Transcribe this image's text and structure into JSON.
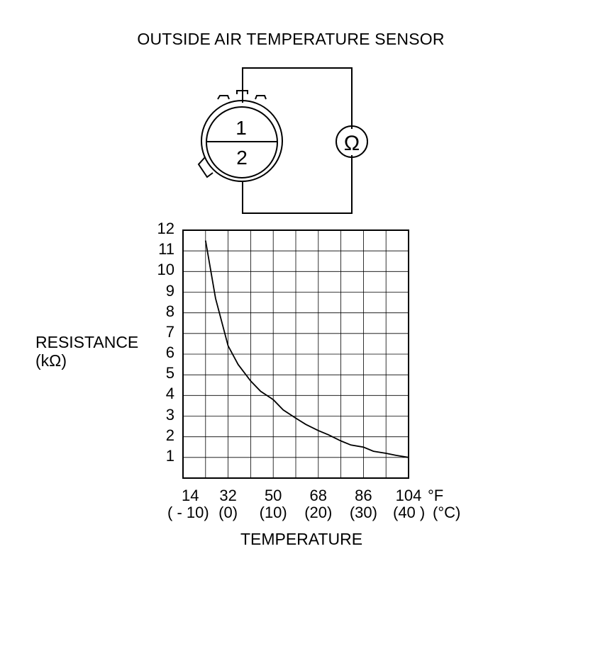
{
  "title": "OUTSIDE AIR TEMPERATURE SENSOR",
  "connector": {
    "pin_top": "1",
    "pin_bottom": "2",
    "meter_symbol": "Ω"
  },
  "chart_data": {
    "type": "line",
    "ylabel_line1": "RESISTANCE",
    "ylabel_line2": "(kΩ)",
    "xlabel": "TEMPERATURE",
    "x_unit_f": "°F",
    "x_unit_c": "(°C)",
    "x_ticks_f": [
      "14",
      "32",
      "50",
      "68",
      "86",
      "104"
    ],
    "x_ticks_c": [
      "( - 10)",
      "(0)",
      "(10)",
      "(20)",
      "(30)",
      "(40 )"
    ],
    "y_ticks": [
      "12",
      "11",
      "10",
      "9",
      "8",
      "7",
      "6",
      "5",
      "4",
      "3",
      "2",
      "1"
    ],
    "xlim_f": [
      14,
      104
    ],
    "ylim": [
      0,
      12
    ],
    "grid": true,
    "series": [
      {
        "x": [
          23,
          27,
          32,
          36,
          41,
          45,
          50,
          54,
          59,
          63,
          68,
          72,
          77,
          81,
          86,
          90,
          95,
          99,
          104
        ],
        "y": [
          11.5,
          8.7,
          6.4,
          5.5,
          4.7,
          4.2,
          3.8,
          3.3,
          2.9,
          2.6,
          2.3,
          2.1,
          1.8,
          1.6,
          1.5,
          1.3,
          1.2,
          1.1,
          1.0
        ]
      }
    ]
  }
}
